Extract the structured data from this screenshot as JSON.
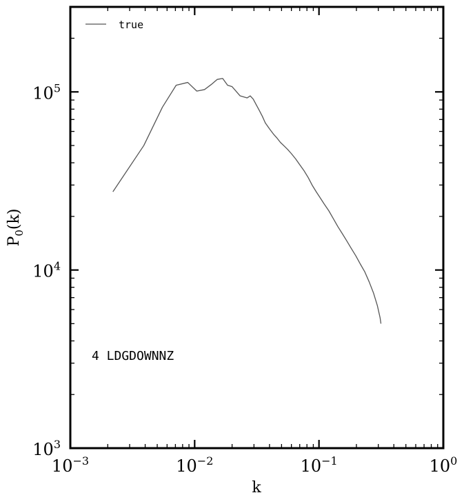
{
  "chart_data": {
    "type": "line",
    "xlabel": "k",
    "ylabel_main": "P",
    "ylabel_sub": "0",
    "ylabel_rest": "(k)",
    "x_scale": "log",
    "y_scale": "log",
    "xlim": [
      0.001,
      1
    ],
    "ylim": [
      1000,
      300000
    ],
    "x_major_ticks": [
      {
        "base": "10",
        "exp": "−3"
      },
      {
        "base": "10",
        "exp": "−2"
      },
      {
        "base": "10",
        "exp": "−1"
      },
      {
        "base": "10",
        "exp": "0"
      }
    ],
    "y_major_ticks": [
      {
        "base": "10",
        "exp": "3"
      },
      {
        "base": "10",
        "exp": "4"
      },
      {
        "base": "10",
        "exp": "5"
      }
    ],
    "legend": {
      "placement": "top-left",
      "entries": [
        {
          "label": "true",
          "color": "#555555"
        }
      ]
    },
    "annotation": "4 LDGDOWNNZ",
    "series": [
      {
        "name": "true",
        "color": "#555555",
        "x": [
          0.0022,
          0.0039,
          0.0055,
          0.0071,
          0.0088,
          0.0104,
          0.012,
          0.0136,
          0.0152,
          0.0168,
          0.0184,
          0.02,
          0.0232,
          0.0264,
          0.028,
          0.0296,
          0.0312,
          0.033,
          0.035,
          0.037,
          0.04,
          0.043,
          0.046,
          0.049,
          0.052,
          0.056,
          0.06,
          0.065,
          0.07,
          0.076,
          0.082,
          0.088,
          0.095,
          0.102,
          0.11,
          0.12,
          0.13,
          0.142,
          0.154,
          0.168,
          0.182,
          0.198,
          0.215,
          0.233,
          0.253,
          0.275,
          0.295,
          0.31,
          0.315
        ],
        "y": [
          27500,
          50000,
          82000,
          109000,
          113000,
          101000,
          103000,
          110000,
          117500,
          119000,
          109000,
          107000,
          95000,
          92500,
          95000,
          91000,
          85000,
          79000,
          73000,
          67000,
          62000,
          58000,
          55000,
          52000,
          50000,
          47500,
          45000,
          42000,
          39000,
          36000,
          33000,
          30000,
          27500,
          25500,
          23500,
          21500,
          19500,
          17500,
          16000,
          14500,
          13200,
          12000,
          10800,
          9800,
          8600,
          7400,
          6300,
          5400,
          5000
        ]
      }
    ]
  }
}
